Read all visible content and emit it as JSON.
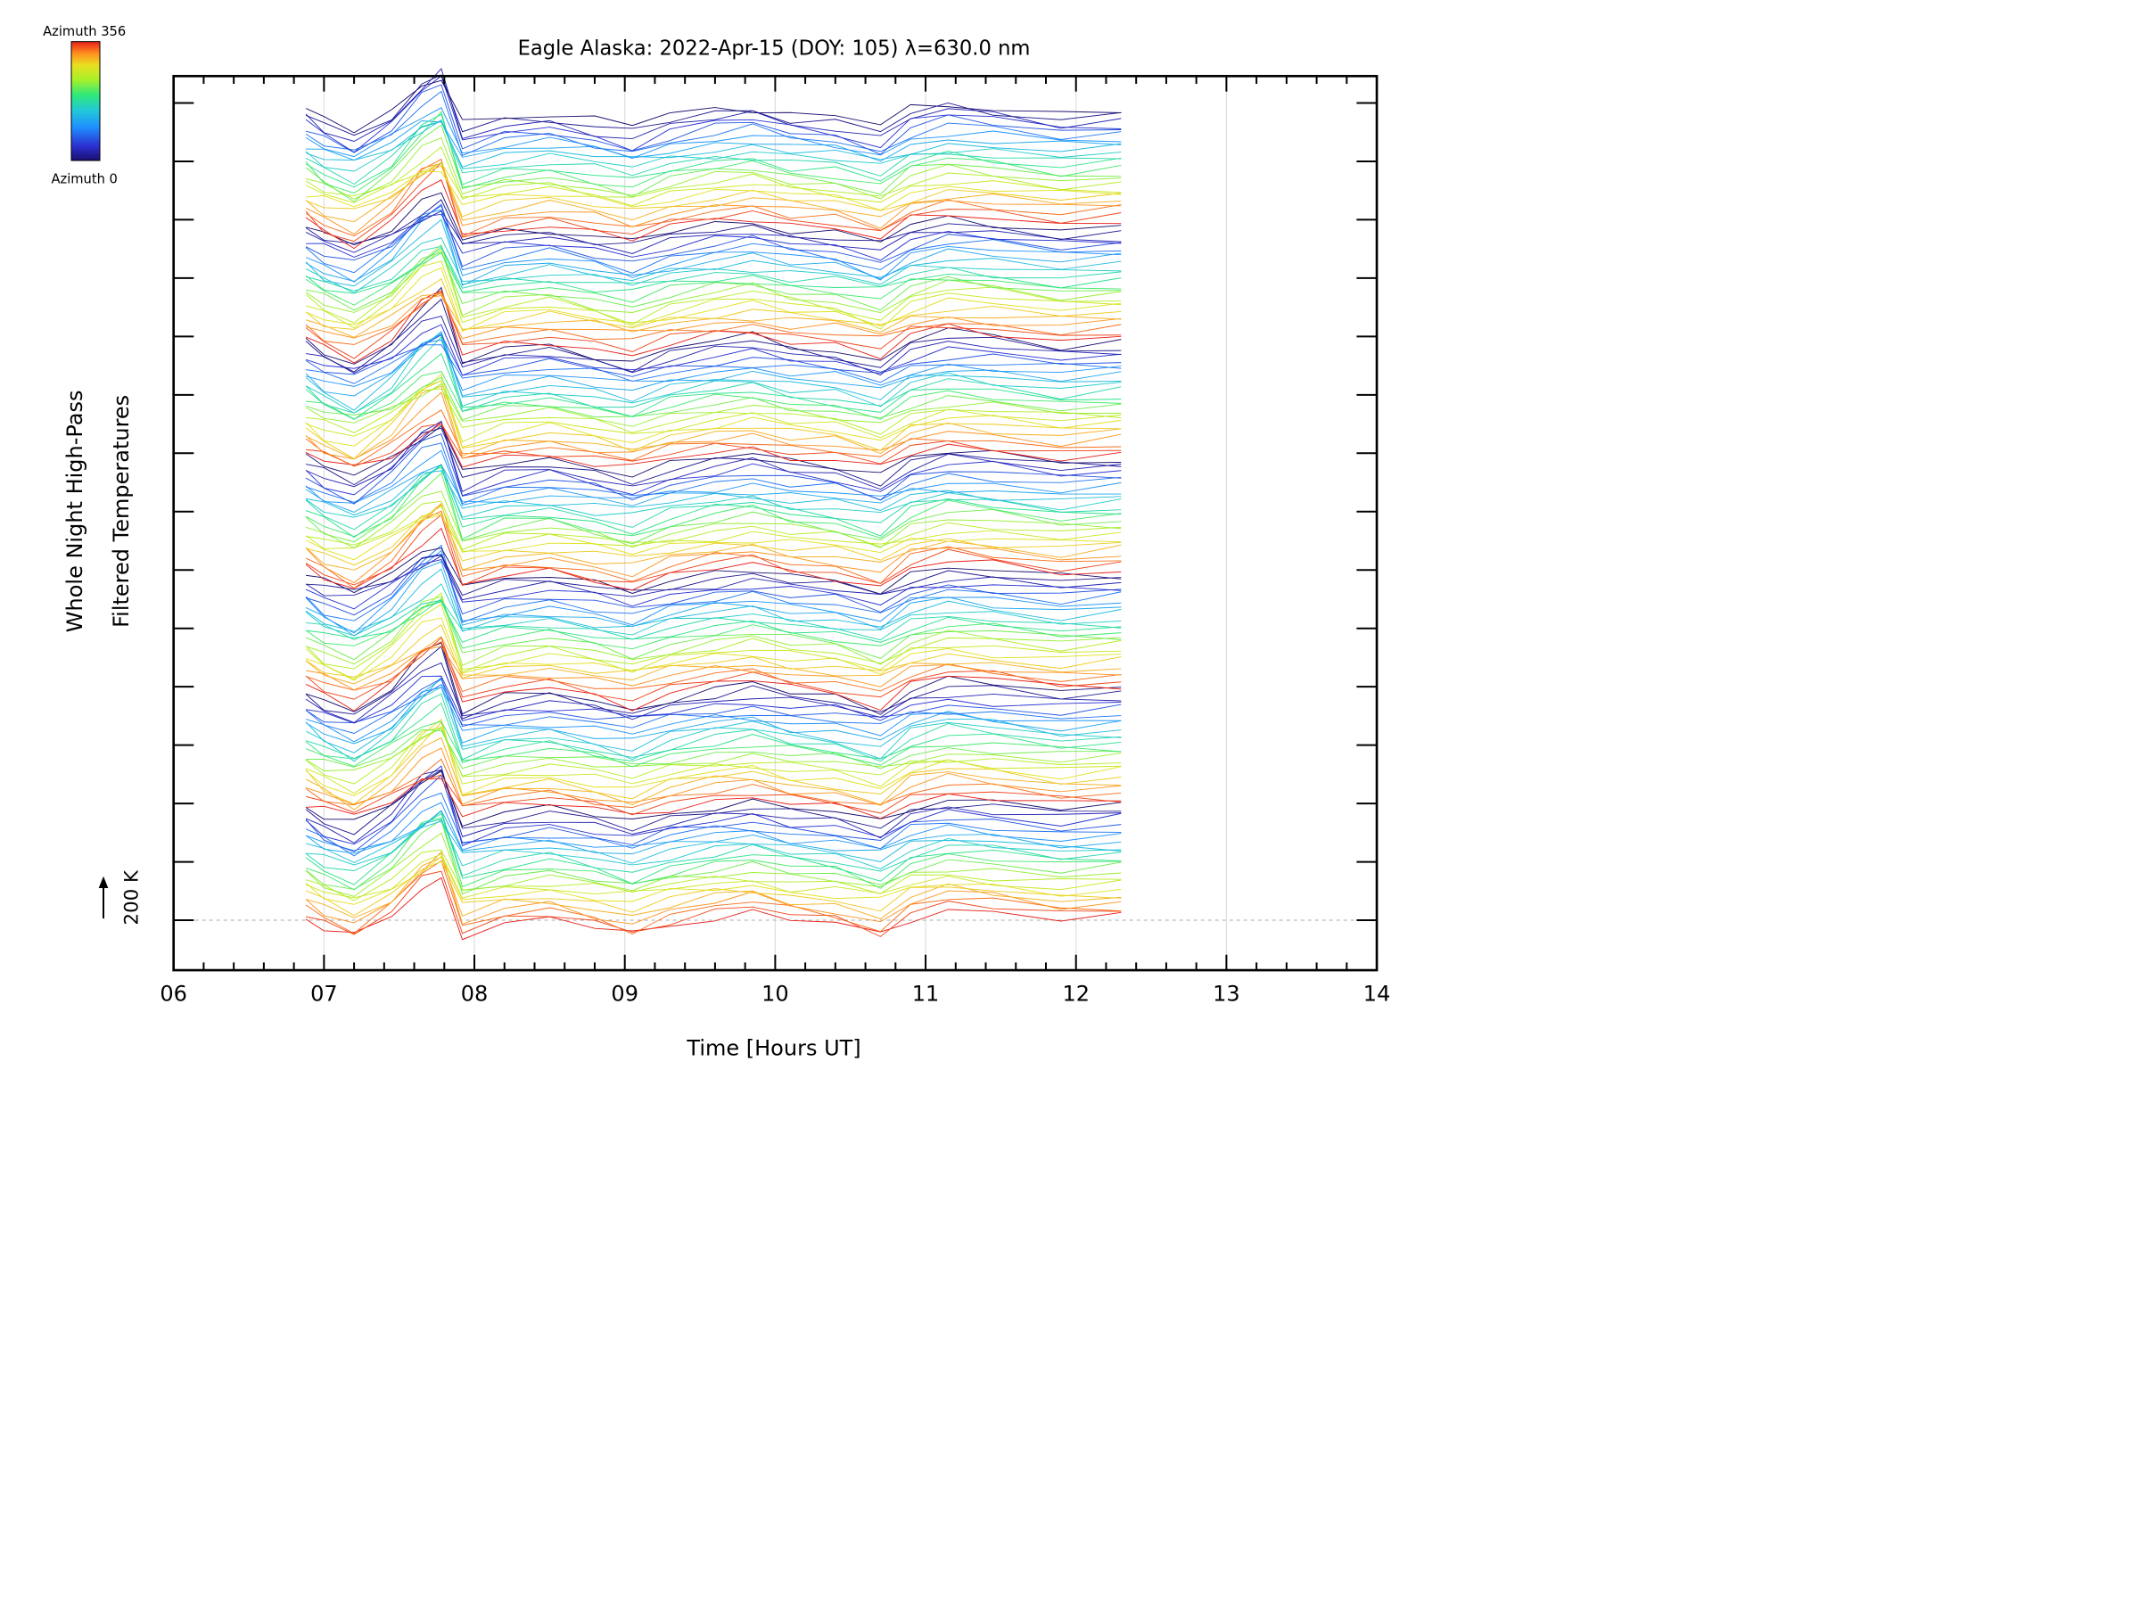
{
  "chart_data": {
    "type": "line",
    "title": "Eagle Alaska: 2022-Apr-15 (DOY: 105) λ=630.0 nm",
    "xlabel": "Time [Hours UT]",
    "ylabel_line1": "Whole Night High-Pass",
    "ylabel_line2": "Filtered Temperatures",
    "xlim": [
      6,
      14
    ],
    "x_ticks": [
      "06",
      "07",
      "08",
      "09",
      "10",
      "11",
      "12",
      "13",
      "14"
    ],
    "x_grid": true,
    "data_time_range": [
      6.88,
      12.3
    ],
    "scale_bar_label": "200 K",
    "colorbar": {
      "top_label": "Azimuth 356",
      "bottom_label": "Azimuth 0",
      "colormap": "rainbow",
      "colors": [
        "#1b0f6e",
        "#2b2fd0",
        "#1f8fff",
        "#22c8d8",
        "#2ee87a",
        "#a8f02a",
        "#e8e020",
        "#ff9020",
        "#e8201a"
      ]
    },
    "stack": {
      "groups": 7,
      "traces_per_group": 24,
      "note_visible": false
    },
    "series_template": {
      "x": [
        6.88,
        7.0,
        7.2,
        7.45,
        7.65,
        7.78,
        7.92,
        8.2,
        8.5,
        8.8,
        9.05,
        9.3,
        9.6,
        9.85,
        10.1,
        10.4,
        10.7,
        10.9,
        11.15,
        11.45,
        11.9,
        12.3
      ],
      "y": [
        5,
        -10,
        -25,
        5,
        45,
        60,
        -20,
        -5,
        0,
        -10,
        -20,
        -5,
        5,
        10,
        0,
        -5,
        -20,
        5,
        15,
        10,
        0,
        5
      ]
    }
  }
}
